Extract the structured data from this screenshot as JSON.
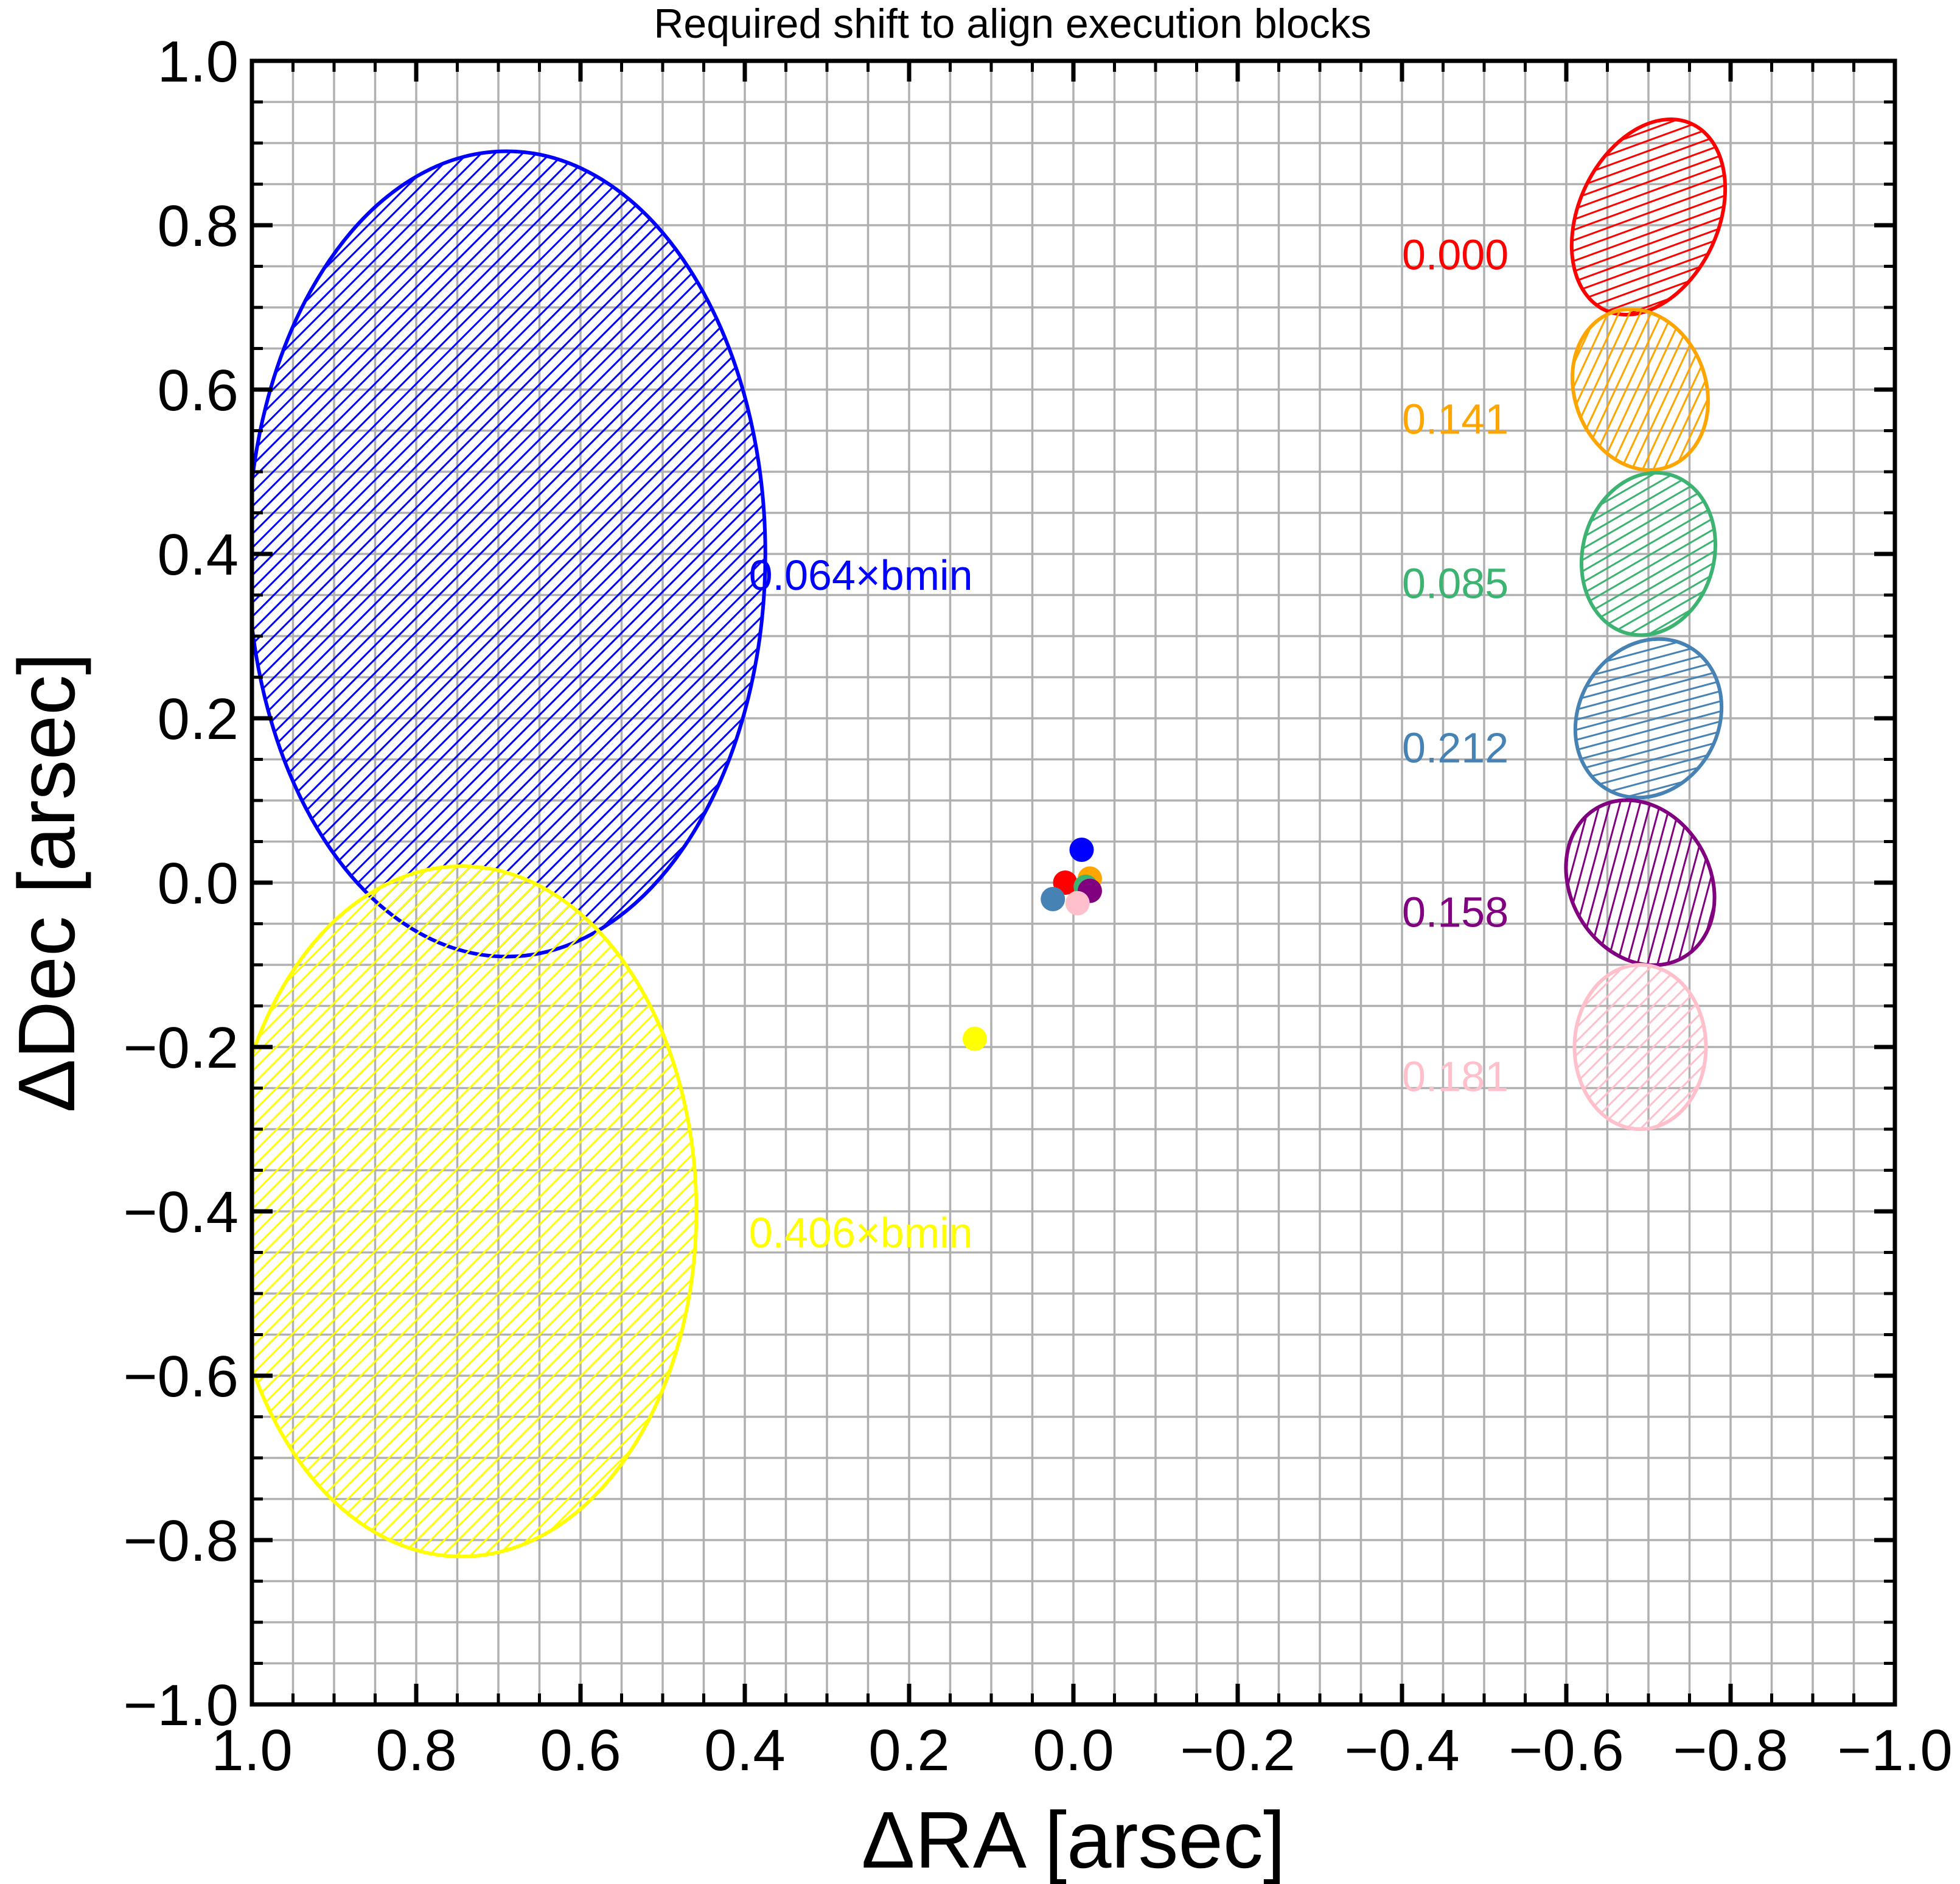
{
  "chart_data": {
    "type": "scatter",
    "title": "Required shift to align execution blocks",
    "xlabel": "ΔRA [arsec]",
    "ylabel": "ΔDec [arsec]",
    "xlim": [
      1.0,
      -1.0
    ],
    "ylim": [
      -1.0,
      1.0
    ],
    "x_inverted": true,
    "grid": true,
    "xticks": [
      1.0,
      0.8,
      0.6,
      0.4,
      0.2,
      0.0,
      -0.2,
      -0.4,
      -0.6,
      -0.8,
      -1.0
    ],
    "yticks": [
      1.0,
      0.8,
      0.6,
      0.4,
      0.2,
      0.0,
      -0.2,
      -0.4,
      -0.6,
      -0.8,
      -1.0
    ],
    "xtick_labels": [
      "1.0",
      "0.8",
      "0.6",
      "0.4",
      "0.2",
      "0.0",
      "−0.2",
      "−0.4",
      "−0.6",
      "−0.8",
      "−1.0"
    ],
    "ytick_labels": [
      "1.0",
      "0.8",
      "0.6",
      "0.4",
      "0.2",
      "0.0",
      "−0.2",
      "−0.4",
      "−0.6",
      "−0.8",
      "−1.0"
    ],
    "points": [
      {
        "x": 0.01,
        "y": 0.0,
        "color": "#ff0000"
      },
      {
        "x": -0.02,
        "y": 0.005,
        "color": "#ffa500"
      },
      {
        "x": -0.015,
        "y": -0.005,
        "color": "#3cb371"
      },
      {
        "x": -0.01,
        "y": 0.04,
        "color": "#0000ff"
      },
      {
        "x": 0.025,
        "y": -0.02,
        "color": "#4682b4"
      },
      {
        "x": -0.02,
        "y": -0.01,
        "color": "#800080"
      },
      {
        "x": -0.005,
        "y": -0.025,
        "color": "#ffc0cb"
      },
      {
        "x": 0.12,
        "y": -0.19,
        "color": "#ffff00"
      }
    ],
    "ellipses": [
      {
        "cx": 0.69,
        "cy": 0.4,
        "rx": 0.315,
        "ry": 0.49,
        "angle": 0,
        "color": "#0000ff"
      },
      {
        "cx": 0.745,
        "cy": -0.4,
        "rx": 0.286,
        "ry": 0.42,
        "angle": 0,
        "color": "#ffff00"
      },
      {
        "cx": -0.7,
        "cy": 0.81,
        "rx": 0.085,
        "ry": 0.125,
        "angle": 25,
        "color": "#ff0000"
      },
      {
        "cx": -0.69,
        "cy": 0.6,
        "rx": 0.08,
        "ry": 0.1,
        "angle": -20,
        "color": "#ffa500"
      },
      {
        "cx": -0.7,
        "cy": 0.4,
        "rx": 0.08,
        "ry": 0.1,
        "angle": 15,
        "color": "#3cb371"
      },
      {
        "cx": -0.7,
        "cy": 0.2,
        "rx": 0.085,
        "ry": 0.1,
        "angle": 30,
        "color": "#4682b4"
      },
      {
        "cx": -0.69,
        "cy": 0.0,
        "rx": 0.085,
        "ry": 0.105,
        "angle": -30,
        "color": "#800080"
      },
      {
        "cx": -0.69,
        "cy": -0.2,
        "rx": 0.08,
        "ry": 0.1,
        "angle": 0,
        "color": "#ffc0cb"
      }
    ],
    "annotations": [
      {
        "text": "0.064×bmin",
        "x": 0.395,
        "y": 0.37,
        "color": "#0000ff"
      },
      {
        "text": "0.406×bmin",
        "x": 0.395,
        "y": -0.43,
        "color": "#ffff00"
      },
      {
        "text": "0.000",
        "x": -0.4,
        "y": 0.76,
        "color": "#ff0000"
      },
      {
        "text": "0.141",
        "x": -0.4,
        "y": 0.56,
        "color": "#ffa500"
      },
      {
        "text": "0.085",
        "x": -0.4,
        "y": 0.36,
        "color": "#3cb371"
      },
      {
        "text": "0.212",
        "x": -0.4,
        "y": 0.16,
        "color": "#4682b4"
      },
      {
        "text": "0.158",
        "x": -0.4,
        "y": -0.04,
        "color": "#800080"
      },
      {
        "text": "0.181",
        "x": -0.4,
        "y": -0.24,
        "color": "#ffc0cb"
      }
    ]
  }
}
